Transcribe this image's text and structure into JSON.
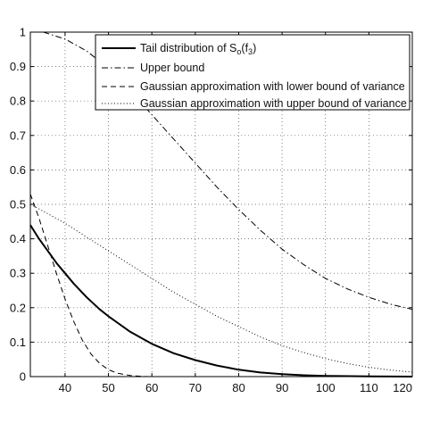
{
  "chart_data": {
    "type": "line",
    "title": "",
    "xlabel": "",
    "ylabel": "",
    "xlim": [
      32,
      120
    ],
    "ylim": [
      0,
      1
    ],
    "xticks": [
      40,
      50,
      60,
      70,
      80,
      90,
      100,
      110,
      120
    ],
    "yticks": [
      0,
      0.1,
      0.2,
      0.3,
      0.4,
      0.5,
      0.6,
      0.7,
      0.8,
      0.9,
      1
    ],
    "grid": true,
    "legend_position": "top-right",
    "series": [
      {
        "name": "Tail distribution of S",
        "name_subscript": "o",
        "name_suffix": "(f",
        "name_suffix_subscript": "3",
        "name_close": ")",
        "style": "solid",
        "x": [
          32,
          34,
          36,
          38,
          40,
          42,
          45,
          48,
          50,
          55,
          60,
          65,
          70,
          75,
          80,
          85,
          90,
          95,
          100,
          110,
          120
        ],
        "y": [
          0.44,
          0.4,
          0.365,
          0.33,
          0.3,
          0.27,
          0.23,
          0.195,
          0.175,
          0.13,
          0.095,
          0.068,
          0.048,
          0.032,
          0.02,
          0.012,
          0.007,
          0.004,
          0.002,
          0.0005,
          0.0001
        ]
      },
      {
        "name": "Upper bound",
        "style": "dashdot",
        "x": [
          32,
          35,
          40,
          45,
          50,
          55,
          60,
          65,
          70,
          75,
          80,
          85,
          90,
          95,
          100,
          105,
          110,
          115,
          120
        ],
        "y": [
          1.0,
          1.0,
          0.98,
          0.945,
          0.895,
          0.83,
          0.76,
          0.69,
          0.62,
          0.55,
          0.485,
          0.425,
          0.37,
          0.325,
          0.285,
          0.255,
          0.23,
          0.21,
          0.195
        ]
      },
      {
        "name": "Gaussian approximation with lower bound of variance",
        "style": "dashed",
        "x": [
          32,
          34,
          36,
          38,
          40,
          42,
          44,
          46,
          48,
          50,
          52,
          55,
          58,
          60,
          62
        ],
        "y": [
          0.53,
          0.46,
          0.38,
          0.3,
          0.225,
          0.16,
          0.105,
          0.065,
          0.038,
          0.02,
          0.01,
          0.003,
          0.0005,
          0.0,
          0.0
        ]
      },
      {
        "name": "Gaussian approximation with upper bound of variance",
        "style": "dotted",
        "x": [
          32,
          35,
          40,
          45,
          50,
          55,
          60,
          65,
          70,
          75,
          80,
          85,
          90,
          95,
          100,
          105,
          110,
          115,
          120
        ],
        "y": [
          0.5,
          0.48,
          0.445,
          0.405,
          0.365,
          0.325,
          0.285,
          0.245,
          0.21,
          0.175,
          0.145,
          0.115,
          0.09,
          0.07,
          0.052,
          0.038,
          0.027,
          0.019,
          0.013
        ]
      }
    ]
  }
}
